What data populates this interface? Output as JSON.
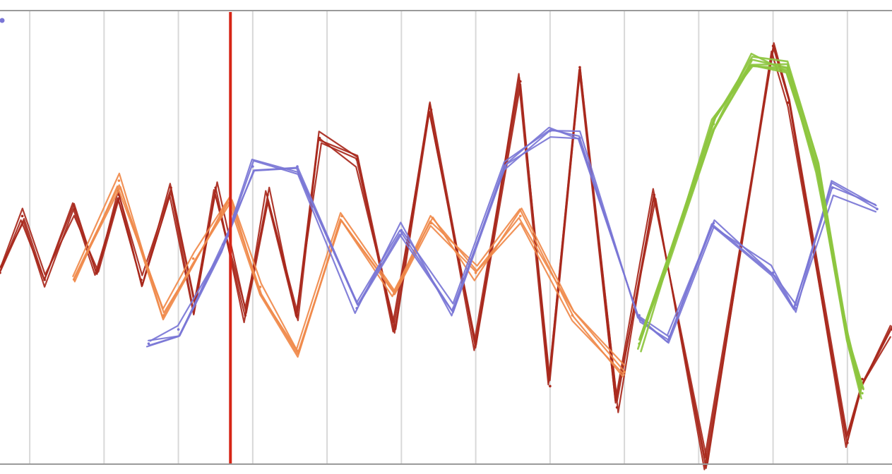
{
  "chart_data": {
    "type": "line",
    "title": "",
    "xlabel": "",
    "ylabel": "",
    "grid": "vertical",
    "legend": "none",
    "xlim": [
      0,
      12
    ],
    "ylim": [
      -3.4,
      3.0
    ],
    "x_gridlines": [
      0.4,
      1.4,
      2.4,
      3.4,
      4.4,
      5.4,
      6.4,
      7.4,
      8.4,
      9.4,
      10.4,
      11.4
    ],
    "cursor_x": 3.1,
    "cursor_color": "#d62516",
    "colors": {
      "dark_red": "#a8281c",
      "orange": "#f08a4b",
      "blue": "#7a76d6",
      "green": "#8dc63f",
      "grid": "#d8d8d8",
      "axis": "#9a9a9a"
    },
    "series": [
      {
        "color": "#a8281c",
        "x": [
          0.0,
          0.3,
          0.6,
          1.0,
          1.3,
          1.6,
          1.9,
          2.3,
          2.6,
          2.9,
          3.3,
          3.6,
          4.0,
          4.3,
          4.8,
          5.3,
          5.8,
          6.4,
          7.0,
          7.4,
          7.8,
          8.3,
          8.8,
          9.5,
          10.4,
          10.6,
          11.4,
          11.6,
          12.0
        ],
        "y": [
          -0.7,
          0.1,
          -0.8,
          0.2,
          -0.7,
          0.4,
          -0.8,
          0.5,
          -1.2,
          0.5,
          -1.3,
          0.4,
          -1.3,
          1.2,
          0.9,
          -1.5,
          1.6,
          -1.7,
          2.0,
          -2.3,
          2.2,
          -2.6,
          0.4,
          -3.4,
          2.5,
          1.7,
          -3.1,
          -2.2,
          -1.5
        ]
      },
      {
        "color": "#f08a4b",
        "x": [
          1.0,
          1.6,
          2.2,
          2.6,
          3.1,
          3.5,
          4.0,
          4.6,
          5.3,
          5.8,
          6.4,
          7.0,
          7.7,
          8.4
        ],
        "y": [
          -0.8,
          0.6,
          -1.3,
          -0.5,
          0.3,
          -0.9,
          -1.8,
          0.1,
          -1.0,
          0.0,
          -0.7,
          0.1,
          -1.3,
          -2.1
        ]
      },
      {
        "color": "#7a76d6",
        "x": [
          2.0,
          2.4,
          3.0,
          3.4,
          4.0,
          4.8,
          5.4,
          6.1,
          6.8,
          7.4,
          7.8,
          8.6,
          9.0,
          9.6,
          10.4,
          10.7,
          11.2,
          11.8
        ],
        "y": [
          -1.7,
          -1.5,
          -0.3,
          0.8,
          0.8,
          -1.2,
          -0.1,
          -1.2,
          0.8,
          1.3,
          1.2,
          -1.3,
          -1.6,
          0.0,
          -0.7,
          -1.2,
          0.5,
          0.2
        ]
      },
      {
        "color": "#8dc63f",
        "x": [
          8.6,
          9.0,
          9.6,
          10.1,
          10.6,
          11.0,
          11.4,
          11.6
        ],
        "y": [
          -1.7,
          -0.5,
          1.4,
          2.3,
          2.2,
          0.8,
          -1.6,
          -2.4
        ]
      }
    ]
  }
}
